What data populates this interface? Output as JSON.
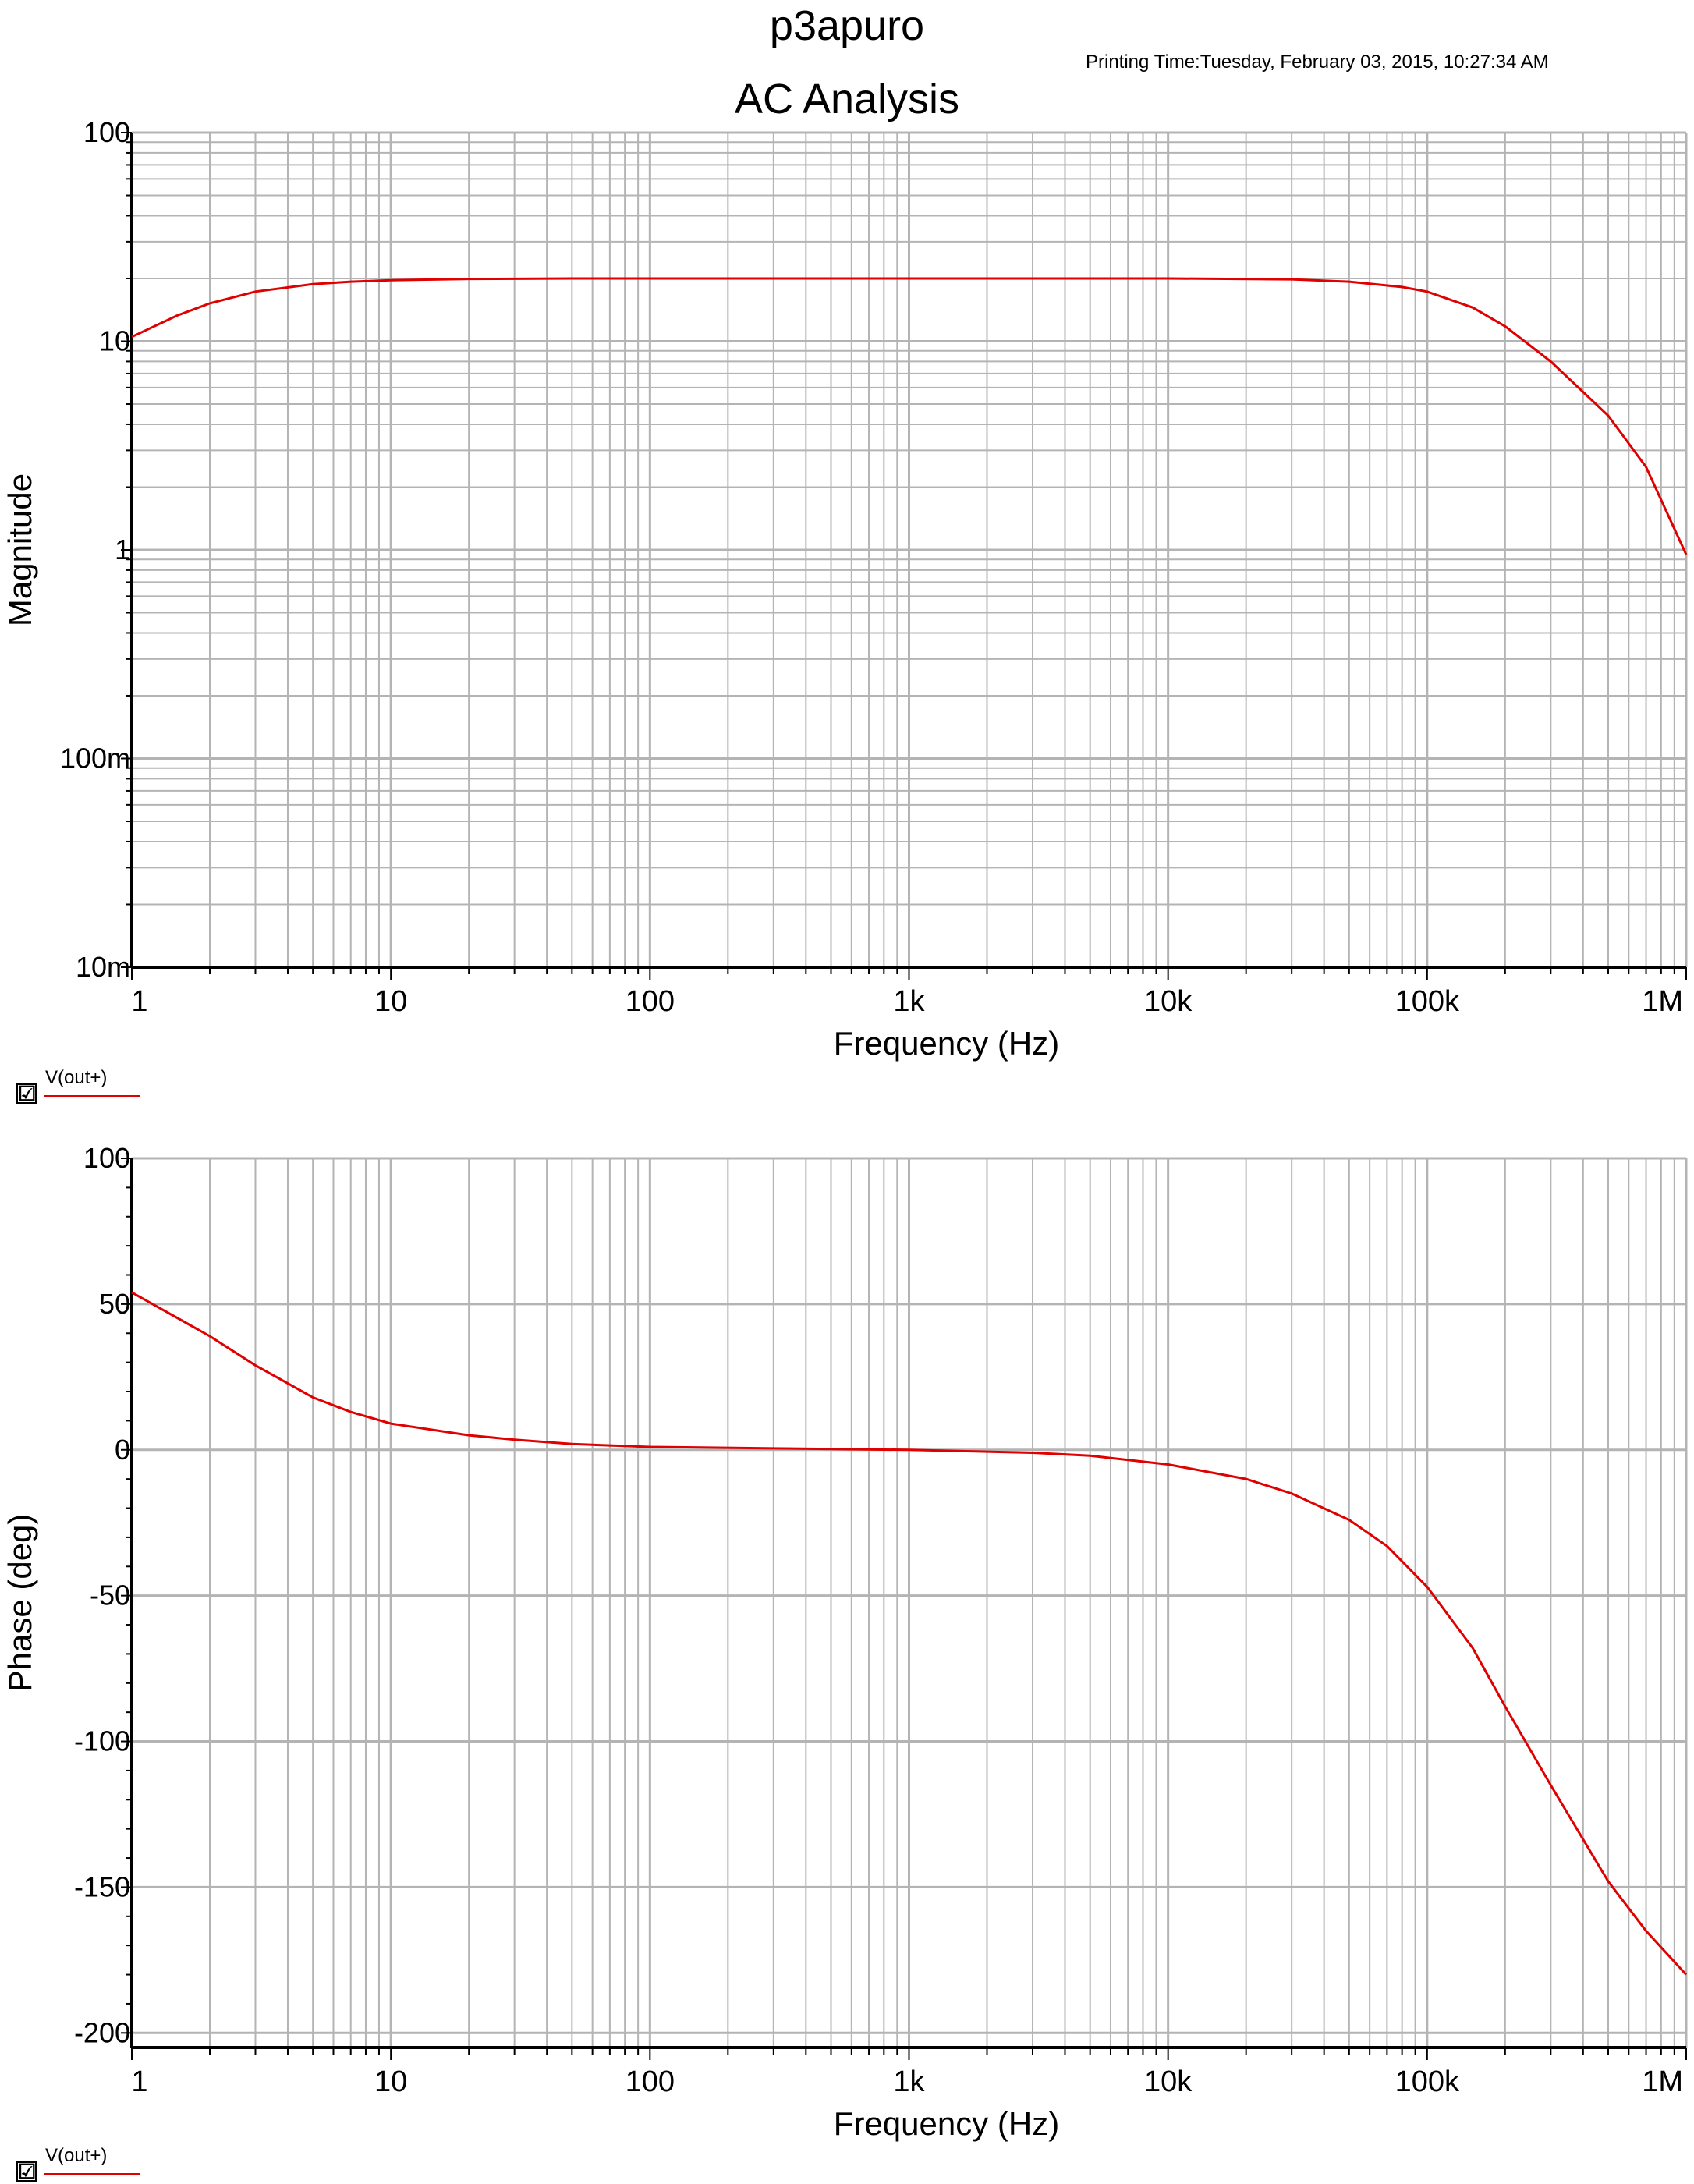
{
  "header": {
    "title": "p3apuro",
    "subtitle": "AC Analysis",
    "print_time": "Printing Time:Tuesday, February 03, 2015, 10:27:34 AM"
  },
  "colors": {
    "trace": "#e00000",
    "grid": "#b4b4b4",
    "axis": "#000000"
  },
  "legends": [
    {
      "checked": "☑",
      "label": "V(out+)"
    },
    {
      "checked": "☑",
      "label": "V(out+)"
    }
  ],
  "chart_data": [
    {
      "type": "line",
      "xscale": "log",
      "yscale": "log",
      "xlabel": "Frequency (Hz)",
      "ylabel": "Magnitude",
      "xlim": [
        1,
        1000000
      ],
      "ylim": [
        0.01,
        100
      ],
      "xticks": [
        1,
        10,
        100,
        1000,
        10000,
        100000,
        1000000
      ],
      "xtick_labels": [
        "1",
        "10",
        "100",
        "1k",
        "10k",
        "100k",
        "1M"
      ],
      "yticks": [
        100,
        10,
        1,
        0.1,
        0.01
      ],
      "ytick_labels": [
        "100",
        "10",
        "1",
        "100m",
        "10m"
      ],
      "grid": true,
      "series": [
        {
          "name": "V(out+)",
          "x": [
            1,
            1.5,
            2,
            3,
            5,
            7,
            10,
            20,
            50,
            100,
            1000,
            10000,
            30000,
            50000,
            80000,
            100000,
            150000,
            200000,
            300000,
            500000,
            700000,
            1000000
          ],
          "y": [
            10.5,
            13.3,
            15.2,
            17.3,
            18.8,
            19.3,
            19.6,
            19.9,
            20,
            20,
            20,
            20,
            19.8,
            19.3,
            18.2,
            17.3,
            14.5,
            11.8,
            8,
            4.4,
            2.5,
            0.95
          ]
        }
      ]
    },
    {
      "type": "line",
      "xscale": "log",
      "xlabel": "Frequency (Hz)",
      "ylabel": "Phase (deg)",
      "xlim": [
        1,
        1000000
      ],
      "ylim": [
        -205,
        100
      ],
      "xticks": [
        1,
        10,
        100,
        1000,
        10000,
        100000,
        1000000
      ],
      "xtick_labels": [
        "1",
        "10",
        "100",
        "1k",
        "10k",
        "100k",
        "1M"
      ],
      "yticks": [
        100,
        50,
        0,
        -50,
        -100,
        -150,
        -200
      ],
      "ytick_labels": [
        "100",
        "50",
        "0",
        "-50",
        "-100",
        "-150",
        "-200"
      ],
      "grid": true,
      "series": [
        {
          "name": "V(out+)",
          "x": [
            1,
            2,
            3,
            5,
            7,
            10,
            20,
            30,
            50,
            100,
            300,
            1000,
            3000,
            5000,
            10000,
            20000,
            30000,
            50000,
            70000,
            100000,
            150000,
            200000,
            300000,
            500000,
            700000,
            1000000
          ],
          "y": [
            54,
            39,
            29,
            18,
            13,
            9,
            5,
            3.5,
            2,
            1,
            0.5,
            0,
            -1,
            -2,
            -5,
            -10,
            -15,
            -24,
            -33,
            -47,
            -68,
            -88,
            -115,
            -148,
            -165,
            -180
          ]
        }
      ]
    }
  ]
}
